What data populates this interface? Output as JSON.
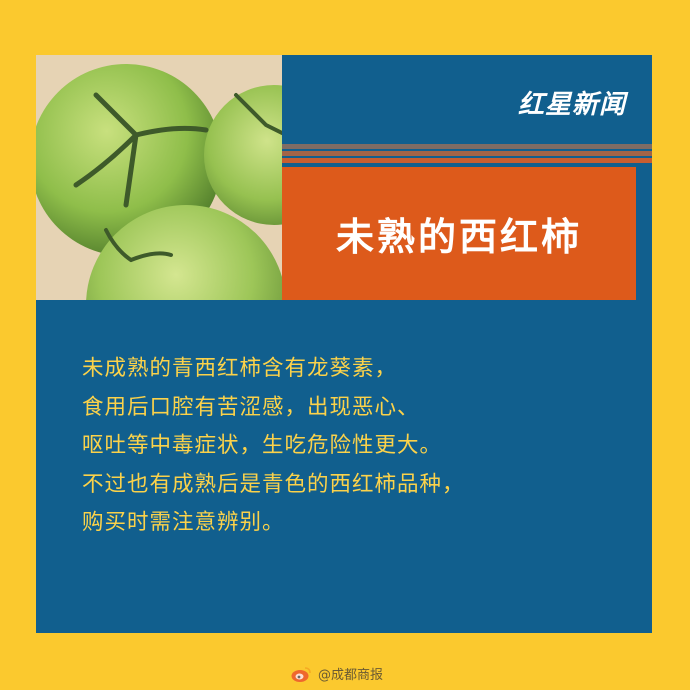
{
  "logo": {
    "text": "红星新闻"
  },
  "title": "未熟的西红柿",
  "body": {
    "lines": [
      "未成熟的青西红柿含有龙葵素，",
      "食用后口腔有苦涩感，出现恶心、",
      "呕吐等中毒症状，生吃危险性更大。",
      "不过也有成熟后是青色的西红柿品种，",
      "购买时需注意辨别。"
    ]
  },
  "watermark": {
    "text": "@成都商报",
    "icon": "weibo-icon"
  },
  "colors": {
    "background": "#FBC92E",
    "card": "#115F8E",
    "title_box": "#DD5A1B",
    "body_text": "#FBD24A"
  }
}
